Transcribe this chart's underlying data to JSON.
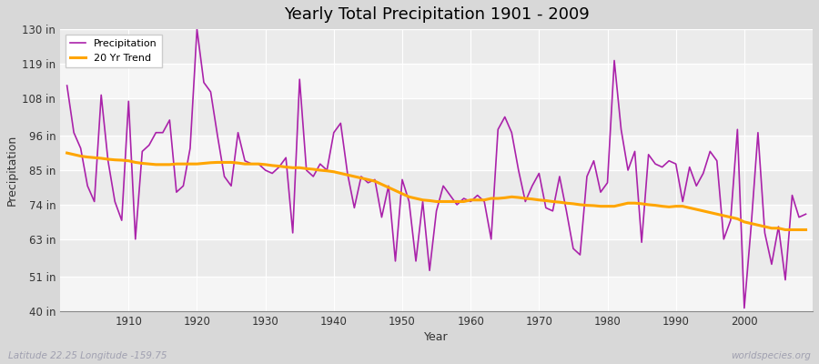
{
  "title": "Yearly Total Precipitation 1901 - 2009",
  "xlabel": "Year",
  "ylabel": "Precipitation",
  "subtitle": "Latitude 22.25 Longitude -159.75",
  "watermark": "worldspecies.org",
  "ylim": [
    40,
    130
  ],
  "yticks": [
    40,
    51,
    63,
    74,
    85,
    96,
    108,
    119,
    130
  ],
  "ytick_labels": [
    "40 in",
    "51 in",
    "63 in",
    "74 in",
    "85 in",
    "96 in",
    "108 in",
    "119 in",
    "130 in"
  ],
  "precip_color": "#AA22AA",
  "trend_color": "#FFA500",
  "fig_bg": "#D8D8D8",
  "plot_bg": "#EBEBEB",
  "years": [
    1901,
    1902,
    1903,
    1904,
    1905,
    1906,
    1907,
    1908,
    1909,
    1910,
    1911,
    1912,
    1913,
    1914,
    1915,
    1916,
    1917,
    1918,
    1919,
    1920,
    1921,
    1922,
    1923,
    1924,
    1925,
    1926,
    1927,
    1928,
    1929,
    1930,
    1931,
    1932,
    1933,
    1934,
    1935,
    1936,
    1937,
    1938,
    1939,
    1940,
    1941,
    1942,
    1943,
    1944,
    1945,
    1946,
    1947,
    1948,
    1949,
    1950,
    1951,
    1952,
    1953,
    1954,
    1955,
    1956,
    1957,
    1958,
    1959,
    1960,
    1961,
    1962,
    1963,
    1964,
    1965,
    1966,
    1967,
    1968,
    1969,
    1970,
    1971,
    1972,
    1973,
    1974,
    1975,
    1976,
    1977,
    1978,
    1979,
    1980,
    1981,
    1982,
    1983,
    1984,
    1985,
    1986,
    1987,
    1988,
    1989,
    1990,
    1991,
    1992,
    1993,
    1994,
    1995,
    1996,
    1997,
    1998,
    1999,
    2000,
    2001,
    2002,
    2003,
    2004,
    2005,
    2006,
    2007,
    2008,
    2009
  ],
  "precip": [
    112,
    97,
    92,
    80,
    75,
    109,
    88,
    75,
    69,
    107,
    63,
    91,
    93,
    97,
    97,
    101,
    78,
    80,
    92,
    130,
    113,
    110,
    96,
    83,
    80,
    97,
    88,
    87,
    87,
    85,
    84,
    86,
    89,
    65,
    114,
    85,
    83,
    87,
    85,
    97,
    100,
    84,
    73,
    83,
    81,
    82,
    70,
    80,
    56,
    82,
    75,
    56,
    75,
    53,
    72,
    80,
    77,
    74,
    76,
    75,
    77,
    75,
    63,
    98,
    102,
    97,
    85,
    75,
    80,
    84,
    73,
    72,
    83,
    72,
    60,
    58,
    83,
    88,
    78,
    81,
    120,
    98,
    85,
    91,
    62,
    90,
    87,
    86,
    88,
    87,
    75,
    86,
    80,
    84,
    91,
    88,
    63,
    69,
    98,
    41,
    67,
    97,
    65,
    55,
    67,
    50,
    77,
    70,
    71
  ],
  "trend": [
    90.5,
    90.0,
    89.5,
    89.2,
    89.0,
    88.8,
    88.5,
    88.3,
    88.2,
    88.0,
    87.5,
    87.2,
    87.0,
    86.8,
    86.8,
    86.8,
    87.0,
    87.0,
    87.0,
    87.0,
    87.2,
    87.4,
    87.5,
    87.5,
    87.5,
    87.3,
    87.0,
    87.0,
    87.0,
    86.8,
    86.5,
    86.3,
    86.0,
    85.8,
    85.8,
    85.5,
    85.3,
    85.0,
    84.8,
    84.5,
    84.0,
    83.5,
    83.0,
    82.5,
    82.0,
    81.5,
    80.5,
    79.5,
    78.5,
    77.5,
    76.5,
    76.0,
    75.5,
    75.3,
    75.0,
    75.0,
    75.0,
    75.0,
    75.0,
    75.5,
    75.5,
    75.5,
    76.0,
    76.0,
    76.2,
    76.5,
    76.3,
    76.0,
    75.8,
    75.5,
    75.3,
    75.0,
    74.8,
    74.5,
    74.3,
    74.0,
    73.8,
    73.7,
    73.5,
    73.5,
    73.5,
    74.0,
    74.5,
    74.5,
    74.3,
    74.0,
    73.8,
    73.5,
    73.3,
    73.5,
    73.5,
    73.0,
    72.5,
    72.0,
    71.5,
    71.0,
    70.5,
    70.0,
    69.5,
    68.5,
    68.0,
    67.5,
    67.0,
    66.5,
    66.5,
    66.0,
    66.0,
    66.0,
    66.0
  ],
  "xtick_positions": [
    1910,
    1920,
    1930,
    1940,
    1950,
    1960,
    1970,
    1980,
    1990,
    2000
  ]
}
